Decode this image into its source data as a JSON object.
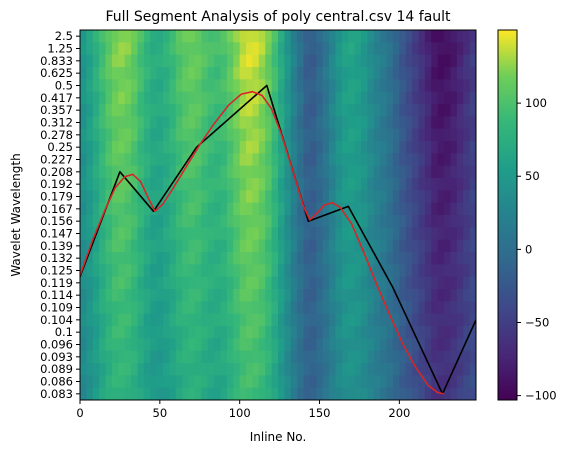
{
  "chart_data": {
    "type": "heatmap",
    "title": "Full Segment Analysis of poly central.csv 14 fault",
    "xlabel": "Inline No.",
    "ylabel": "Wavelet Wavelength",
    "xlim": [
      0,
      248
    ],
    "x_ticks": [
      0,
      50,
      100,
      150,
      200
    ],
    "y_ticks": [
      "2.5",
      "1.25",
      "0.833",
      "0.625",
      "0.5",
      "0.417",
      "0.357",
      "0.312",
      "0.278",
      "0.25",
      "0.227",
      "0.208",
      "0.192",
      "0.179",
      "0.167",
      "0.156",
      "0.147",
      "0.139",
      "0.132",
      "0.125",
      "0.119",
      "0.114",
      "0.109",
      "0.104",
      "0.1",
      "0.096",
      "0.093",
      "0.089",
      "0.086",
      "0.083"
    ],
    "colorbar": {
      "min": -103,
      "max": 150,
      "ticks": [
        100,
        50,
        0,
        -50,
        -100
      ],
      "colormap": "viridis"
    },
    "heatmap_profile": {
      "x": [
        0,
        8,
        16,
        24,
        32,
        40,
        48,
        56,
        64,
        72,
        80,
        88,
        96,
        104,
        112,
        120,
        128,
        136,
        144,
        152,
        160,
        168,
        176,
        184,
        192,
        200,
        208,
        216,
        224,
        232,
        240,
        248
      ],
      "values": [
        40,
        70,
        105,
        128,
        120,
        90,
        70,
        85,
        110,
        118,
        100,
        95,
        120,
        145,
        140,
        110,
        60,
        10,
        -25,
        0,
        40,
        65,
        55,
        30,
        10,
        -20,
        -45,
        -70,
        -95,
        -90,
        -70,
        -50
      ],
      "fine_row_fade": 0.35
    },
    "series": [
      {
        "type": "line",
        "color": "#000000",
        "x": [
          0,
          25,
          46,
          73,
          117,
          143,
          168,
          196,
          227,
          248
        ],
        "y": [
          19.5,
          11.0,
          14.2,
          9.0,
          4.0,
          15.0,
          13.8,
          20.4,
          29.0,
          23.0
        ]
      },
      {
        "type": "curve",
        "color": "#d62728",
        "x": [
          0,
          8,
          16,
          22,
          28,
          33,
          38,
          43,
          47,
          52,
          58,
          66,
          75,
          84,
          93,
          101,
          108,
          114,
          120,
          126,
          133,
          140,
          144,
          148,
          153,
          158,
          163,
          170,
          178,
          186,
          194,
          202,
          210,
          218,
          224,
          228
        ],
        "y": [
          19.4,
          16.5,
          14.0,
          12.3,
          11.4,
          11.2,
          11.8,
          13.2,
          14.2,
          13.6,
          12.4,
          10.7,
          8.8,
          7.1,
          5.6,
          4.7,
          4.5,
          4.8,
          5.9,
          7.9,
          10.8,
          13.8,
          14.9,
          14.4,
          13.7,
          13.5,
          13.9,
          15.2,
          17.6,
          20.2,
          22.6,
          24.9,
          26.8,
          28.3,
          28.9,
          29.0
        ]
      }
    ]
  }
}
